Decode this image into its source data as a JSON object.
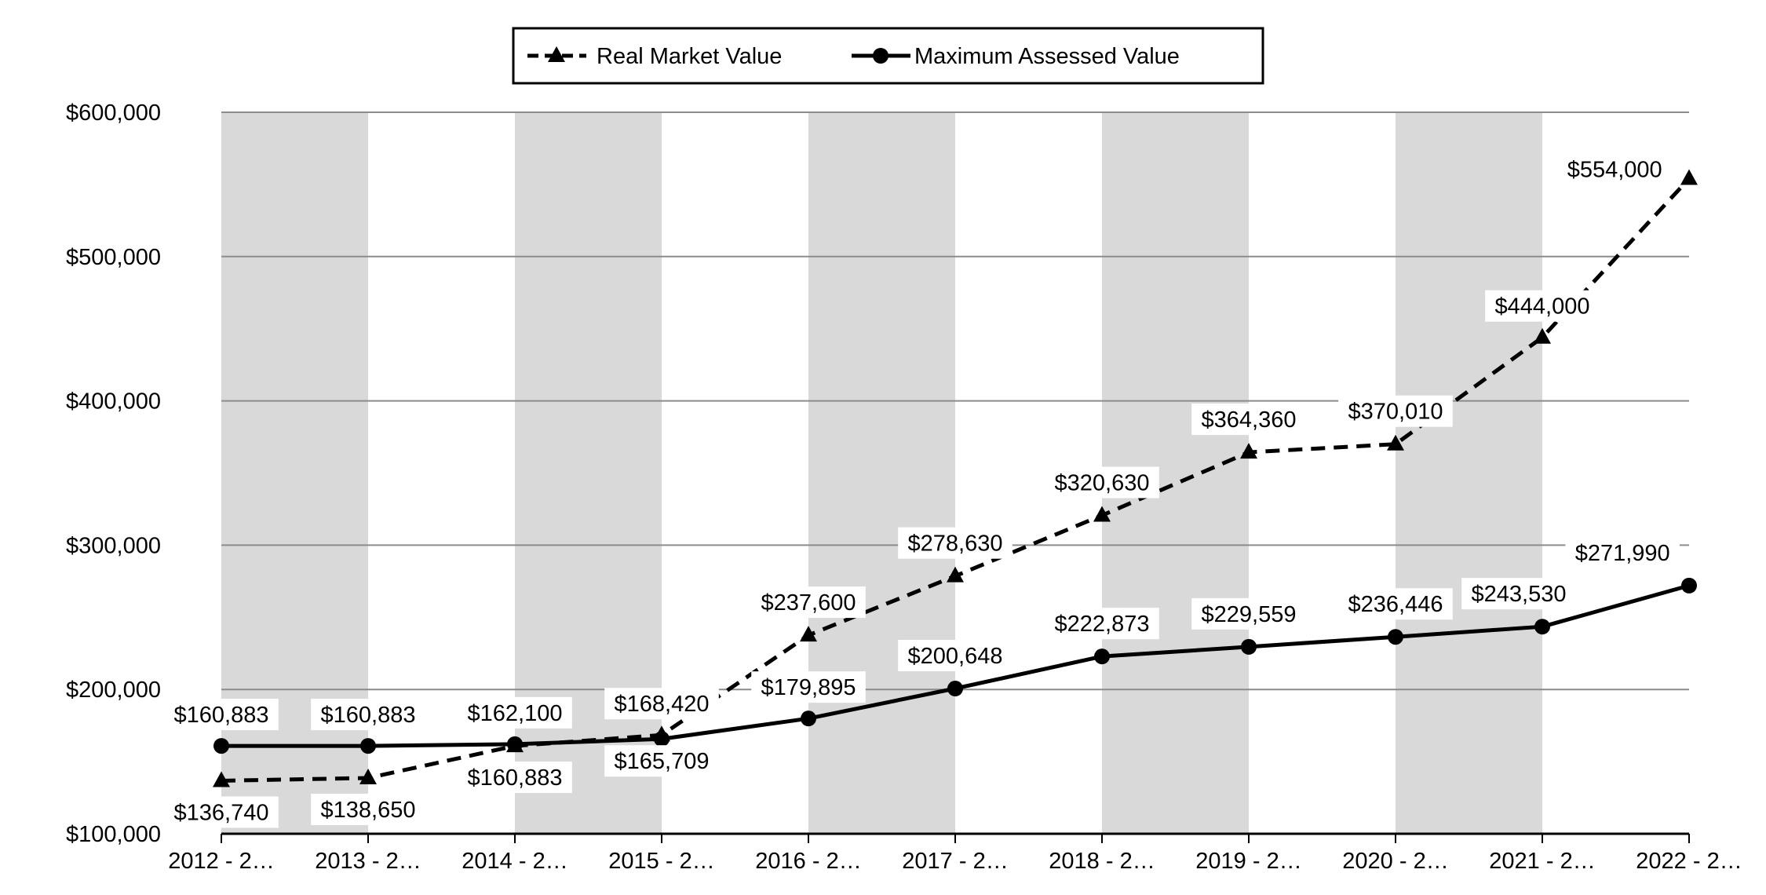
{
  "chart_data": {
    "type": "line",
    "title": "",
    "xlabel": "",
    "ylabel": "",
    "ylim": [
      100000,
      600000
    ],
    "y_ticks": [
      100000,
      200000,
      300000,
      400000,
      500000,
      600000
    ],
    "y_tick_labels": [
      "$100,000",
      "$200,000",
      "$300,000",
      "$400,000",
      "$500,000",
      "$600,000"
    ],
    "categories": [
      "2012 - 2…",
      "2013 - 2…",
      "2014 - 2…",
      "2015 - 2…",
      "2016 - 2…",
      "2017 - 2…",
      "2018 - 2…",
      "2019 - 2…",
      "2020 - 2…",
      "2021 - 2…",
      "2022 - 2…"
    ],
    "grid": true,
    "band_color": "#d9d9d9",
    "legend_position": "top-center",
    "series": [
      {
        "name": "Real Market Value",
        "marker": "triangle",
        "line_style": "dashed",
        "color": "#000000",
        "values": [
          136740,
          138650,
          160883,
          168420,
          237600,
          278630,
          320630,
          364360,
          370010,
          444000,
          554000
        ],
        "labels": [
          "$136,740",
          "$138,650",
          "$160,883",
          "$168,420",
          "$237,600",
          "$278,630",
          "$320,630",
          "$364,360",
          "$370,010",
          "$444,000",
          "$554,000"
        ]
      },
      {
        "name": "Maximum Assessed Value",
        "marker": "circle",
        "line_style": "solid",
        "color": "#000000",
        "values": [
          160883,
          160883,
          162100,
          165709,
          179895,
          200648,
          222873,
          229559,
          236446,
          243530,
          271990
        ],
        "labels": [
          "$160,883",
          "$160,883",
          "$162,100",
          "$165,709",
          "$179,895",
          "$200,648",
          "$222,873",
          "$229,559",
          "$236,446",
          "$243,530",
          "$271,990"
        ]
      }
    ]
  }
}
